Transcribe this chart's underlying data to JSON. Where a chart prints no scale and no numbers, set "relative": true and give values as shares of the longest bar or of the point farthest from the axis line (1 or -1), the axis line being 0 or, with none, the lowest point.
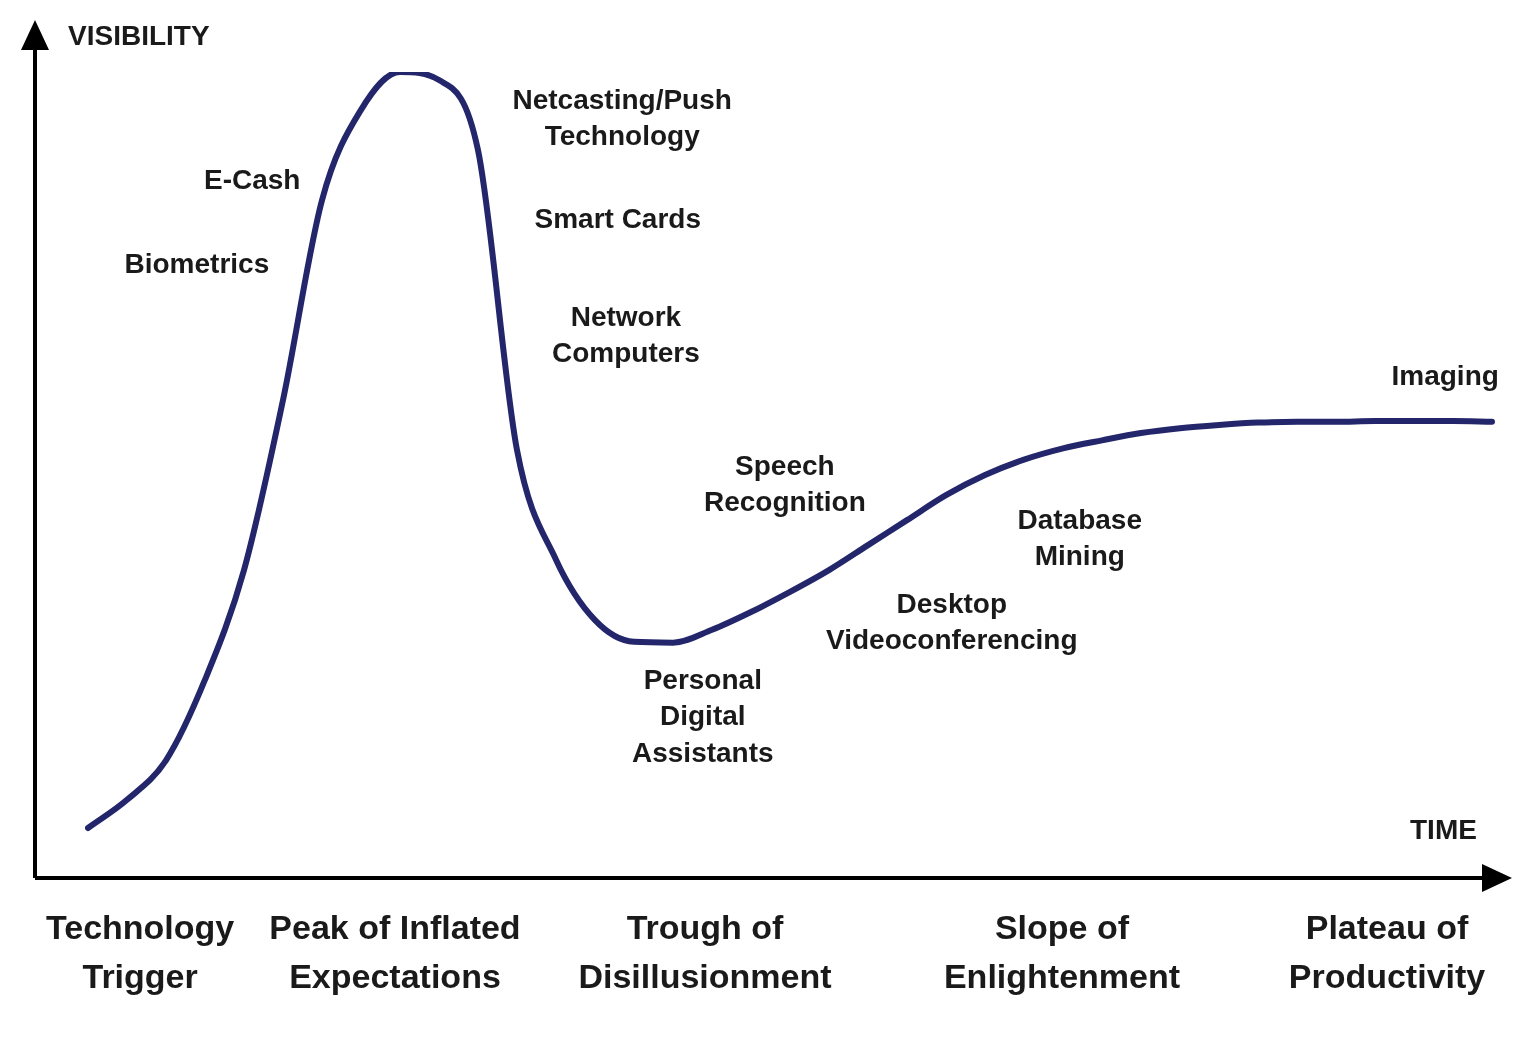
{
  "chart_data": {
    "type": "line",
    "relative": true,
    "xlabel": "TIME",
    "ylabel": "VISIBILITY",
    "categories": [
      null,
      null,
      null,
      null,
      null,
      null,
      null,
      null,
      null,
      null,
      null,
      null,
      null,
      null,
      null,
      null,
      null,
      null,
      null,
      null,
      null,
      null,
      null,
      null,
      null,
      null,
      null,
      null,
      null,
      null,
      null,
      null,
      null,
      null,
      null,
      null,
      null
    ],
    "series": [
      {
        "color": "#23266b",
        "values": [
          0.062,
          0.097,
          0.146,
          0.246,
          0.382,
          0.593,
          0.841,
          0.953,
          1,
          0.99,
          0.903,
          0.531,
          0.395,
          0.32,
          0.293,
          0.292,
          0.308,
          0.33,
          0.355,
          0.382,
          0.413,
          0.444,
          0.475,
          0.5,
          0.519,
          0.533,
          0.543,
          0.552,
          0.558,
          0.562,
          0.565,
          0.566,
          0.566,
          0.567,
          0.567,
          0.567,
          0.566
        ]
      }
    ],
    "marker": "none",
    "line_style": "solid",
    "grid": false,
    "legend": false,
    "annotations": [
      "E-Cash",
      "Biometrics",
      "Netcasting/Push Technology",
      "Smart Cards",
      "Network Computers",
      "Speech Recognition",
      "Personal Digital Assistants",
      "Database Mining",
      "Desktop Videoconferencing",
      "Imaging",
      "Technology Trigger",
      "Peak of Inflated Expectations",
      "Trough of Disillusionment",
      "Slope of Enlightenment",
      "Plateau of Productivity"
    ]
  }
}
